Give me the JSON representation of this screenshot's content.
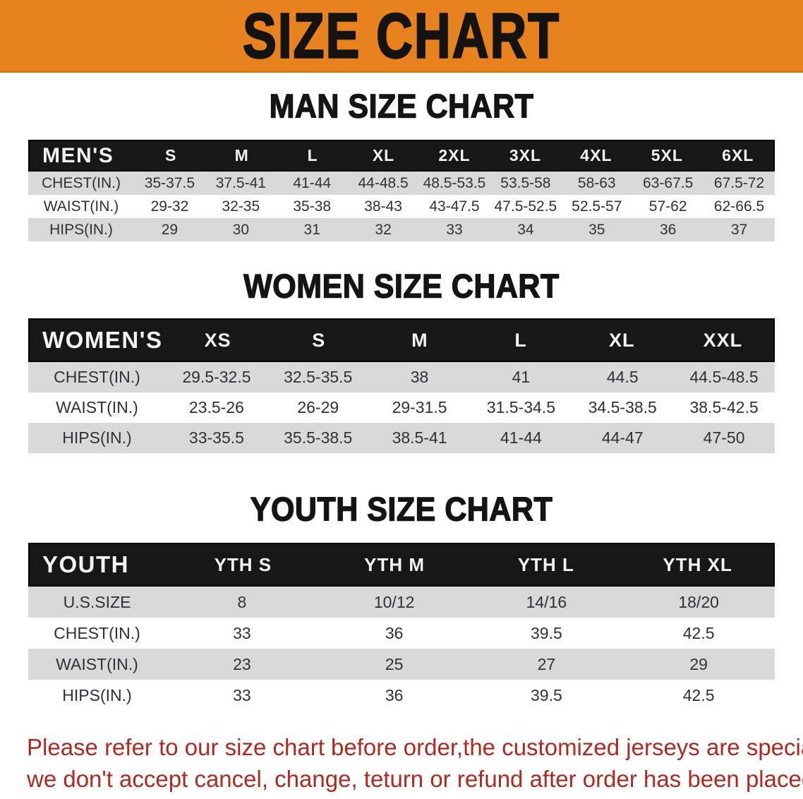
{
  "banner": {
    "title": "SIZE CHART"
  },
  "colors": {
    "banner_bg": "#E8821E",
    "table_header_bg": "#171717",
    "row_stripe_gray": "#D9D9D9",
    "footer_red": "#AC2A1F"
  },
  "sections": [
    {
      "heading": "MAN SIZE CHART",
      "table": {
        "header_label": "MEN'S",
        "columns": [
          "S",
          "M",
          "L",
          "XL",
          "2XL",
          "3XL",
          "4XL",
          "5XL",
          "6XL"
        ],
        "rows": [
          {
            "label": "CHEST(IN.)",
            "values": [
              "35-37.5",
              "37.5-41",
              "41-44",
              "44-48.5",
              "48.5-53.5",
              "53.5-58",
              "58-63",
              "63-67.5",
              "67.5-72"
            ]
          },
          {
            "label": "WAIST(IN.)",
            "values": [
              "29-32",
              "32-35",
              "35-38",
              "38-43",
              "43-47.5",
              "47.5-52.5",
              "52.5-57",
              "57-62",
              "62-66.5"
            ]
          },
          {
            "label": "HIPS(IN.)",
            "values": [
              "29",
              "30",
              "31",
              "32",
              "33",
              "34",
              "35",
              "36",
              "37"
            ]
          }
        ]
      }
    },
    {
      "heading": "WOMEN SIZE CHART",
      "table": {
        "header_label": "WOMEN'S",
        "columns": [
          "XS",
          "S",
          "M",
          "L",
          "XL",
          "XXL"
        ],
        "rows": [
          {
            "label": "CHEST(IN.)",
            "values": [
              "29.5-32.5",
              "32.5-35.5",
              "38",
              "41",
              "44.5",
              "44.5-48.5"
            ]
          },
          {
            "label": "WAIST(IN.)",
            "values": [
              "23.5-26",
              "26-29",
              "29-31.5",
              "31.5-34.5",
              "34.5-38.5",
              "38.5-42.5"
            ]
          },
          {
            "label": "HIPS(IN.)",
            "values": [
              "33-35.5",
              "35.5-38.5",
              "38.5-41",
              "41-44",
              "44-47",
              "47-50"
            ]
          }
        ]
      }
    },
    {
      "heading": "YOUTH SIZE CHART",
      "table": {
        "header_label": "YOUTH",
        "columns": [
          "YTH S",
          "YTH M",
          "YTH L",
          "YTH XL"
        ],
        "rows": [
          {
            "label": "U.S.SIZE",
            "values": [
              "8",
              "10/12",
              "14/16",
              "18/20"
            ]
          },
          {
            "label": "CHEST(IN.)",
            "values": [
              "33",
              "36",
              "39.5",
              "42.5"
            ]
          },
          {
            "label": "WAIST(IN.)",
            "values": [
              "23",
              "25",
              "27",
              "29"
            ]
          },
          {
            "label": "HIPS(IN.)",
            "values": [
              "33",
              "36",
              "39.5",
              "42.5"
            ]
          }
        ]
      }
    }
  ],
  "footer": {
    "lines": [
      "Please refer to our size chart before order,the customized jerseys are special products,",
      "we don't accept cancel, change, teturn or refund after order has been placed!"
    ]
  }
}
